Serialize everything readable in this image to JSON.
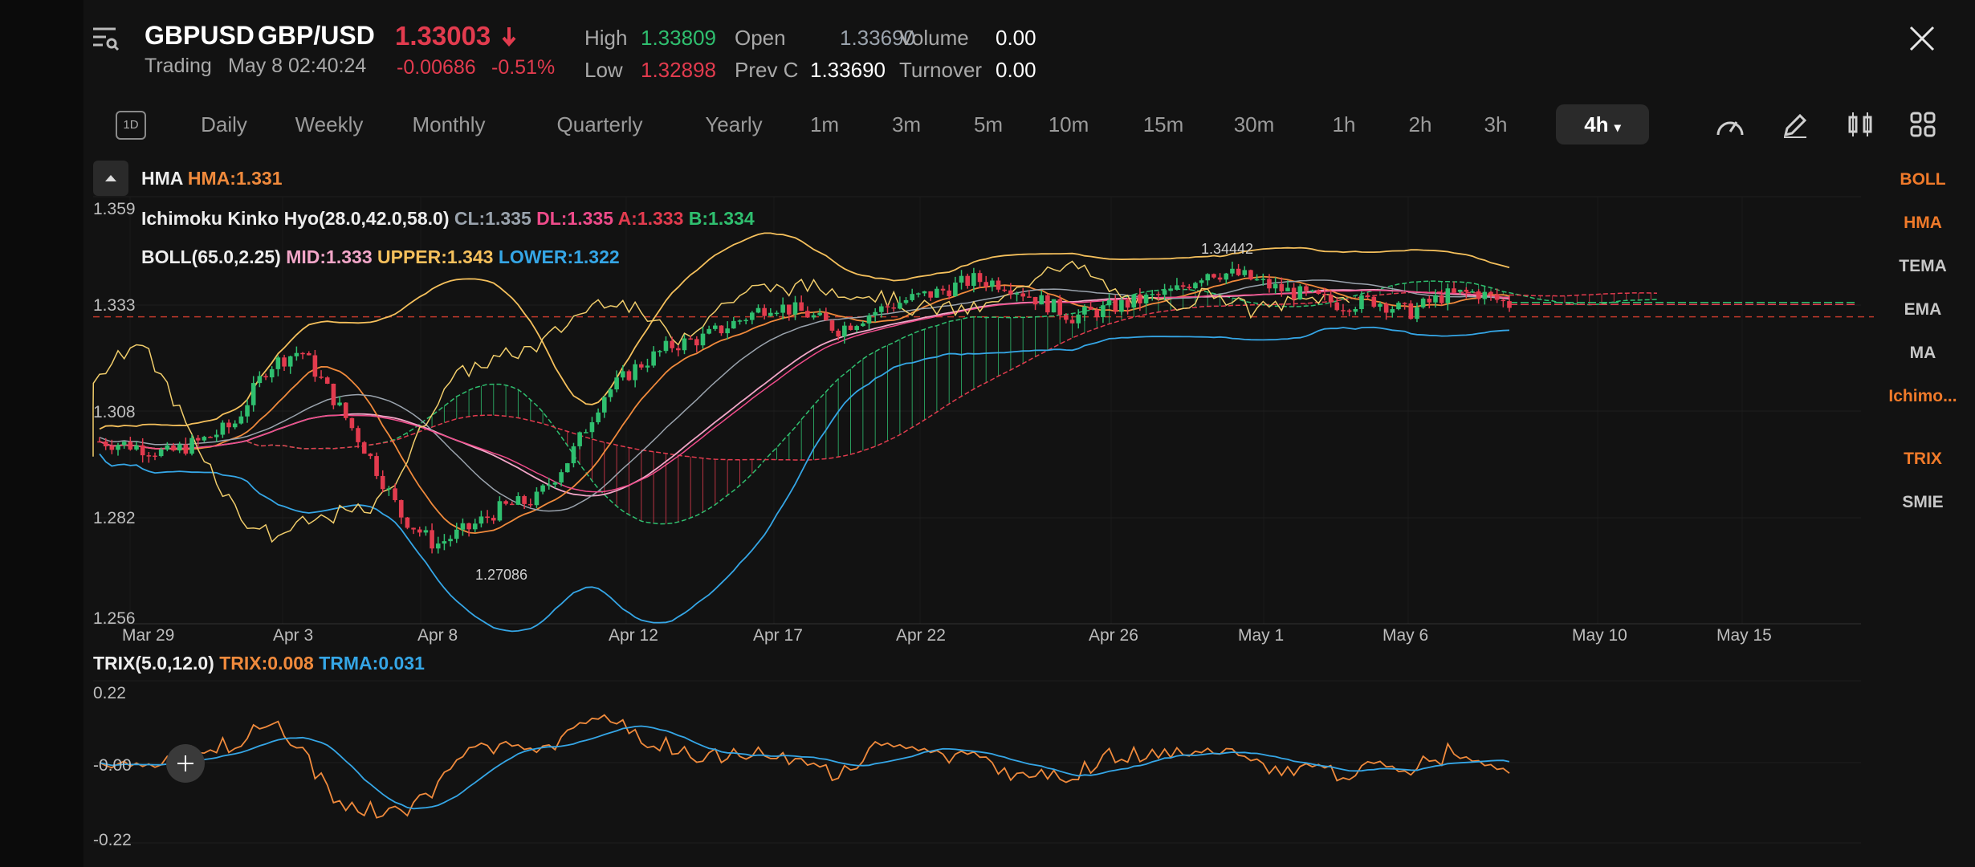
{
  "header": {
    "symbol": "GBPUSD",
    "name": "GBP/USD",
    "price": "1.33003",
    "trading_status": "Trading",
    "datetime": "May 8 02:40:24",
    "change": "-0.00686",
    "change_pct": "-0.51%",
    "high_label": "High",
    "high_value": "1.33809",
    "low_label": "Low",
    "low_value": "1.32898",
    "open_label": "Open",
    "open_value": "1.33690",
    "prevc_label": "Prev C",
    "prevc_value": "1.33690",
    "volume_label": "Volume",
    "volume_value": "0.00",
    "turnover_label": "Turnover",
    "turnover_value": "0.00"
  },
  "tabs": {
    "small_icon": "1D",
    "items": [
      "Daily",
      "Weekly",
      "Monthly",
      "Quarterly",
      "Yearly",
      "1m",
      "3m",
      "5m",
      "10m",
      "15m",
      "30m",
      "1h",
      "2h",
      "3h",
      "4h"
    ],
    "active": "4h"
  },
  "toolbar_icons": [
    "gauge-icon",
    "pencil-icon",
    "candle-style-icon",
    "grid-icon"
  ],
  "main_legend": {
    "hma_label": "HMA",
    "hma_value": "HMA:1.331",
    "ichimoku_label": "Ichimoku Kinko Hyo(28.0,42.0,58.0)",
    "ichimoku_cl": "CL:1.335",
    "ichimoku_dl": "DL:1.335",
    "ichimoku_a": "A:1.333",
    "ichimoku_b": "B:1.334",
    "boll_label": "BOLL(65.0,2.25)",
    "boll_mid": "MID:1.333",
    "boll_upper": "UPPER:1.343",
    "boll_lower": "LOWER:1.322"
  },
  "sub_legend": {
    "trix_label": "TRIX(5.0,12.0)",
    "trix_value": "TRIX:0.008",
    "trma_value": "TRMA:0.031"
  },
  "sidebar": {
    "items": [
      {
        "label": "BOLL",
        "active": true
      },
      {
        "label": "HMA",
        "active": true
      },
      {
        "label": "TEMA",
        "active": false
      },
      {
        "label": "EMA",
        "active": false
      },
      {
        "label": "MA",
        "active": false
      },
      {
        "label": "Ichimo...",
        "active": true
      },
      {
        "label": "TRIX",
        "active": true
      },
      {
        "label": "SMIE",
        "active": false
      }
    ]
  },
  "colors": {
    "up": "#2fbf6f",
    "down": "#e23b4e",
    "hma": "#f08a3c",
    "boll_upper": "#f5c05c",
    "boll_mid": "#f2a6c8",
    "boll_lower": "#35a6e6",
    "cl": "#9aa3ad",
    "dl": "#ef4b8a",
    "accent": "#f07a2a",
    "trix": "#f08a3c",
    "trma": "#35a6e6"
  },
  "chart_data": [
    {
      "type": "candlestick",
      "title": "GBPUSD 4h",
      "yticks": [
        "1.359",
        "1.333",
        "1.308",
        "1.282",
        "1.256"
      ],
      "ylim": [
        1.256,
        1.359
      ],
      "xticks": [
        "Mar 29",
        "Apr 3",
        "Apr 8",
        "Apr 12",
        "Apr 17",
        "Apr 22",
        "Apr 26",
        "May 1",
        "May 6",
        "May 10",
        "May 15"
      ],
      "annotations": [
        "1.34442",
        "1.27086"
      ],
      "current_price": 1.33003,
      "series": [
        {
          "name": "HMA",
          "last": 1.331
        },
        {
          "name": "CL",
          "last": 1.335
        },
        {
          "name": "DL",
          "last": 1.335
        },
        {
          "name": "A",
          "last": 1.333
        },
        {
          "name": "B",
          "last": 1.334
        },
        {
          "name": "MID",
          "last": 1.333
        },
        {
          "name": "UPPER",
          "last": 1.343
        },
        {
          "name": "LOWER",
          "last": 1.322
        }
      ],
      "close_profile": [
        1.3,
        1.299,
        1.297,
        1.3,
        1.304,
        1.318,
        1.322,
        1.31,
        1.297,
        1.282,
        1.275,
        1.279,
        1.284,
        1.286,
        1.296,
        1.311,
        1.318,
        1.323,
        1.325,
        1.329,
        1.333,
        1.331,
        1.327,
        1.331,
        1.334,
        1.336,
        1.339,
        1.338,
        1.334,
        1.33,
        1.332,
        1.334,
        1.336,
        1.341,
        1.34,
        1.337,
        1.335,
        1.333,
        1.334,
        1.331,
        1.335,
        1.336,
        1.333
      ]
    },
    {
      "type": "line",
      "title": "TRIX(5.0,12.0)",
      "yticks": [
        "0.22",
        "-0.00",
        "-0.22"
      ],
      "ylim": [
        -0.22,
        0.22
      ],
      "series": [
        {
          "name": "TRIX",
          "last": 0.008
        },
        {
          "name": "TRMA",
          "last": 0.031
        }
      ]
    }
  ]
}
